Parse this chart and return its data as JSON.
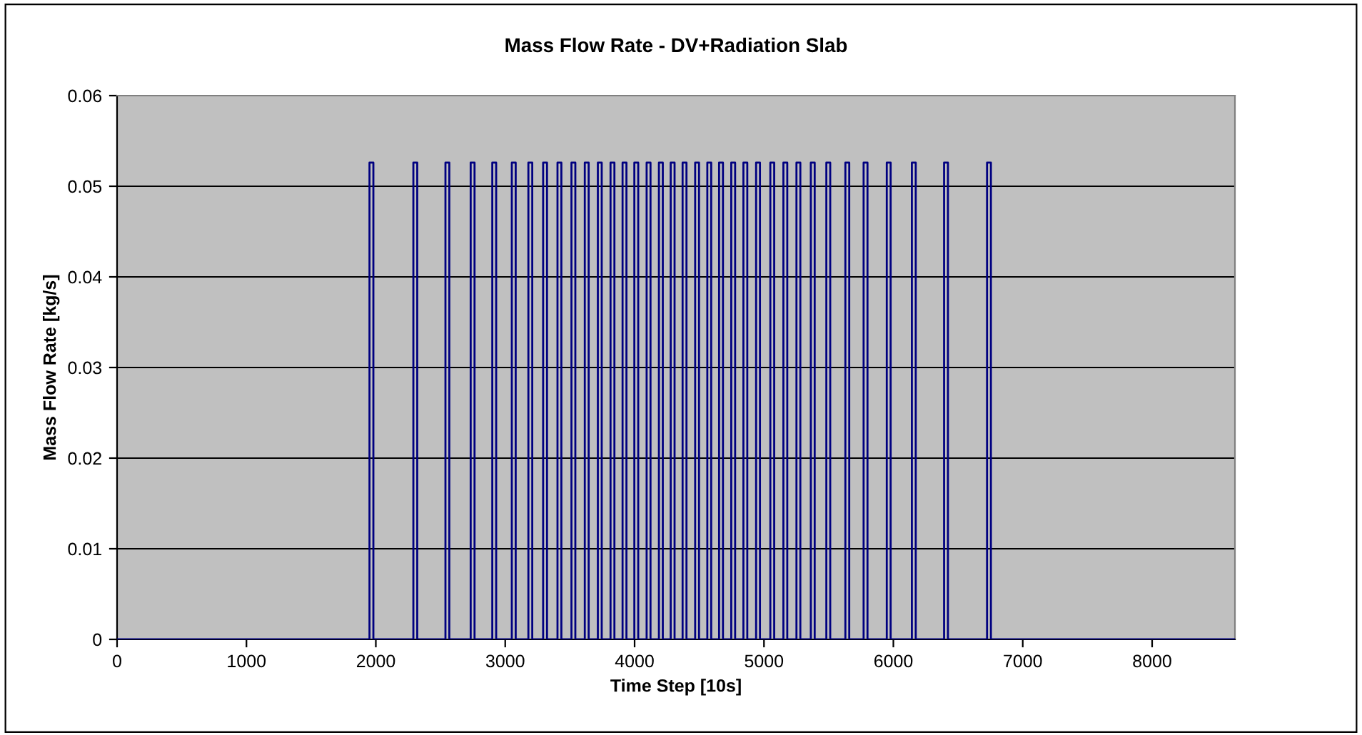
{
  "chart_data": {
    "type": "line",
    "title": "Mass Flow Rate - DV+Radiation Slab",
    "xlabel": "Time Step [10s]",
    "ylabel": "Mass Flow Rate [kg/s]",
    "x": [
      0,
      1951,
      1951,
      1981,
      1981,
      2290,
      2290,
      2320,
      2320,
      2538,
      2538,
      2568,
      2568,
      2733,
      2733,
      2763,
      2763,
      2900,
      2900,
      2930,
      2930,
      3051,
      3051,
      3081,
      3081,
      3179,
      3179,
      3209,
      3209,
      3293,
      3293,
      3323,
      3323,
      3404,
      3404,
      3434,
      3434,
      3512,
      3512,
      3542,
      3542,
      3615,
      3615,
      3645,
      3645,
      3716,
      3716,
      3746,
      3746,
      3814,
      3814,
      3844,
      3844,
      3907,
      3907,
      3937,
      3937,
      3998,
      3998,
      4028,
      4028,
      4093,
      4093,
      4123,
      4123,
      4188,
      4188,
      4218,
      4218,
      4279,
      4279,
      4309,
      4309,
      4371,
      4371,
      4401,
      4401,
      4468,
      4468,
      4498,
      4498,
      4562,
      4562,
      4592,
      4592,
      4653,
      4653,
      4683,
      4683,
      4747,
      4747,
      4777,
      4777,
      4841,
      4841,
      4871,
      4871,
      4939,
      4939,
      4969,
      4969,
      5049,
      5049,
      5079,
      5079,
      5150,
      5150,
      5180,
      5180,
      5251,
      5251,
      5281,
      5281,
      5362,
      5362,
      5392,
      5392,
      5482,
      5482,
      5512,
      5512,
      5629,
      5629,
      5659,
      5659,
      5770,
      5770,
      5800,
      5800,
      5949,
      5949,
      5979,
      5979,
      6143,
      6143,
      6173,
      6173,
      6392,
      6392,
      6422,
      6422,
      6724,
      6724,
      6754,
      6754,
      8640
    ],
    "series": [
      {
        "color": "#000080",
        "values": [
          0,
          0,
          0.0526,
          0.0526,
          0,
          0,
          0.0526,
          0.0526,
          0,
          0,
          0.0526,
          0.0526,
          0,
          0,
          0.0526,
          0.0526,
          0,
          0,
          0.0526,
          0.0526,
          0,
          0,
          0.0526,
          0.0526,
          0,
          0,
          0.0526,
          0.0526,
          0,
          0,
          0.0526,
          0.0526,
          0,
          0,
          0.0526,
          0.0526,
          0,
          0,
          0.0526,
          0.0526,
          0,
          0,
          0.0526,
          0.0526,
          0,
          0,
          0.0526,
          0.0526,
          0,
          0,
          0.0526,
          0.0526,
          0,
          0,
          0.0526,
          0.0526,
          0,
          0,
          0.0526,
          0.0526,
          0,
          0,
          0.0526,
          0.0526,
          0,
          0,
          0.0526,
          0.0526,
          0,
          0,
          0.0526,
          0.0526,
          0,
          0,
          0.0526,
          0.0526,
          0,
          0,
          0.0526,
          0.0526,
          0,
          0,
          0.0526,
          0.0526,
          0,
          0,
          0.0526,
          0.0526,
          0,
          0,
          0.0526,
          0.0526,
          0,
          0,
          0.0526,
          0.0526,
          0,
          0,
          0.0526,
          0.0526,
          0,
          0,
          0.0526,
          0.0526,
          0,
          0,
          0.0526,
          0.0526,
          0,
          0,
          0.0526,
          0.0526,
          0,
          0,
          0.0526,
          0.0526,
          0,
          0,
          0.0526,
          0.0526,
          0,
          0,
          0.0526,
          0.0526,
          0,
          0,
          0.0526,
          0.0526,
          0,
          0,
          0.0526,
          0.0526,
          0,
          0,
          0.0526,
          0.0526,
          0,
          0,
          0.0526,
          0.0526,
          0,
          0,
          0.0526,
          0.0526,
          0,
          0
        ]
      }
    ],
    "xlim": [
      0,
      8640
    ],
    "xticks": [
      0,
      1000,
      2000,
      3000,
      4000,
      5000,
      6000,
      7000,
      8000
    ],
    "ylim": [
      0,
      0.06
    ],
    "yticks": [
      {
        "value": 0,
        "label": "0"
      },
      0.01,
      0.02,
      0.03,
      0.04,
      0.05,
      0.06
    ],
    "grid": "y",
    "legend": false,
    "marker": "none",
    "line_style": "solid"
  }
}
